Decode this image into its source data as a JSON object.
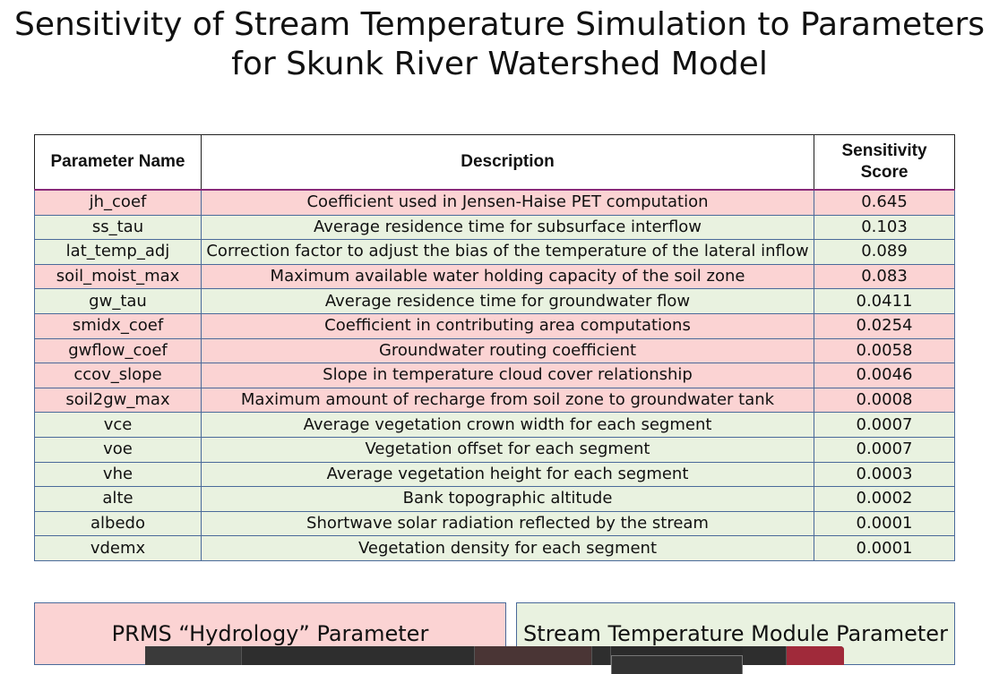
{
  "title": {
    "line1": "Sensitivity of Stream Temperature Simulation to Parameters",
    "line2": "for Skunk River Watershed Model"
  },
  "table": {
    "headers": {
      "name": "Parameter Name",
      "description": "Description",
      "score_line1": "Sensitivity",
      "score_line2": "Score"
    },
    "rows": [
      {
        "name": "jh_coef",
        "description": "Coefficient used in Jensen-Haise PET computation",
        "score": "0.645",
        "type": "hydrology"
      },
      {
        "name": "ss_tau",
        "description": "Average residence time for subsurface interflow",
        "score": "0.103",
        "type": "stream"
      },
      {
        "name": "lat_temp_adj",
        "description": "Correction factor to adjust the bias of the temperature of the lateral inflow",
        "score": "0.089",
        "type": "stream"
      },
      {
        "name": "soil_moist_max",
        "description": "Maximum available water holding capacity of the soil zone",
        "score": "0.083",
        "type": "hydrology"
      },
      {
        "name": "gw_tau",
        "description": "Average residence time for groundwater flow",
        "score": "0.0411",
        "type": "stream"
      },
      {
        "name": "smidx_coef",
        "description": "Coefficient in contributing area computations",
        "score": "0.0254",
        "type": "hydrology"
      },
      {
        "name": "gwflow_coef",
        "description": "Groundwater routing coefficient",
        "score": "0.0058",
        "type": "hydrology"
      },
      {
        "name": "ccov_slope",
        "description": "Slope in temperature cloud cover relationship",
        "score": "0.0046",
        "type": "hydrology"
      },
      {
        "name": "soil2gw_max",
        "description": "Maximum amount of recharge from soil zone to groundwater tank",
        "score": "0.0008",
        "type": "hydrology"
      },
      {
        "name": "vce",
        "description": "Average vegetation crown width for each segment",
        "score": "0.0007",
        "type": "stream"
      },
      {
        "name": "voe",
        "description": "Vegetation offset for each segment",
        "score": "0.0007",
        "type": "stream"
      },
      {
        "name": "vhe",
        "description": "Average vegetation height for each segment",
        "score": "0.0003",
        "type": "stream"
      },
      {
        "name": "alte",
        "description": "Bank topographic altitude",
        "score": "0.0002",
        "type": "stream"
      },
      {
        "name": "albedo",
        "description": "Shortwave solar radiation reflected by the stream",
        "score": "0.0001",
        "type": "stream"
      },
      {
        "name": "vdemx",
        "description": "Vegetation density for each segment",
        "score": "0.0001",
        "type": "stream"
      }
    ]
  },
  "legend": {
    "hydrology": "PRMS “Hydrology” Parameter",
    "stream": "Stream Temperature Module Parameter"
  },
  "colors": {
    "hydrology": "#fbd3d3",
    "stream": "#e9f2e0"
  }
}
